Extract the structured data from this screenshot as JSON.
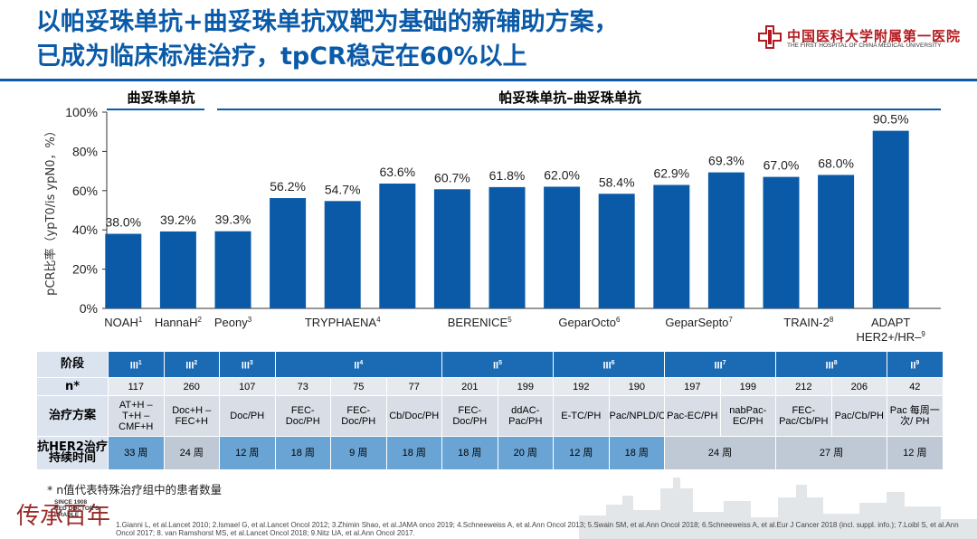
{
  "header": {
    "title_line1": "以帕妥珠单抗+曲妥珠单抗双靶为基础的新辅助方案，",
    "title_line2": "已成为临床标准治疗，tpCR稳定在60%以上",
    "logo_cn": "中国医科大学附属第一医院",
    "logo_en": "THE FIRST HOSPITAL OF CHINA MEDICAL UNIVERSITY"
  },
  "groups": {
    "trastuzumab": "曲妥珠单抗",
    "dual": "帕妥珠单抗–曲妥珠单抗"
  },
  "chart_data": {
    "type": "bar",
    "title": "",
    "ylabel": "pCR比率（ypT0/is ypN0，%）",
    "ylim": [
      0,
      100
    ],
    "yticks": [
      "0%",
      "20%",
      "40%",
      "60%",
      "80%",
      "100%"
    ],
    "values": [
      38.0,
      39.2,
      39.3,
      56.2,
      54.7,
      63.6,
      60.7,
      61.8,
      62.0,
      58.4,
      62.9,
      69.3,
      67.0,
      68.0,
      90.5
    ],
    "labels": [
      "38.0%",
      "39.2%",
      "39.3%",
      "56.2%",
      "54.7%",
      "63.6%",
      "60.7%",
      "61.8%",
      "62.0%",
      "58.4%",
      "62.9%",
      "69.3%",
      "67.0%",
      "68.0%",
      "90.5%"
    ],
    "studies": [
      {
        "name": "NOAH",
        "sup": "1",
        "bars": 1
      },
      {
        "name": "HannaH",
        "sup": "2",
        "bars": 1
      },
      {
        "name": "Peony",
        "sup": "3",
        "bars": 1
      },
      {
        "name": "TRYPHAENA",
        "sup": "4",
        "bars": 3
      },
      {
        "name": "BERENICE",
        "sup": "5",
        "bars": 2
      },
      {
        "name": "GeparOcto",
        "sup": "6",
        "bars": 2
      },
      {
        "name": "GeparSepto",
        "sup": "7",
        "bars": 2
      },
      {
        "name": "TRAIN-2",
        "sup": "8",
        "bars": 2
      },
      {
        "name": "ADAPT",
        "name2": "HER2+/HR–",
        "sup": "9",
        "bars": 1
      }
    ],
    "bar_color": "#0a5aa8"
  },
  "table": {
    "row_headers": [
      "阶段",
      "n*",
      "治疗方案",
      "抗HER2治疗持续时间"
    ],
    "phase": [
      {
        "t": "III",
        "s": "1",
        "span": 1
      },
      {
        "t": "III",
        "s": "2",
        "span": 1
      },
      {
        "t": "III",
        "s": "3",
        "span": 1
      },
      {
        "t": "II",
        "s": "4",
        "span": 3
      },
      {
        "t": "II",
        "s": "5",
        "span": 2
      },
      {
        "t": "III",
        "s": "6",
        "span": 2
      },
      {
        "t": "III",
        "s": "7",
        "span": 2
      },
      {
        "t": "III",
        "s": "8",
        "span": 2
      },
      {
        "t": "II",
        "s": "9",
        "span": 1
      }
    ],
    "n": [
      "117",
      "260",
      "107",
      "73",
      "75",
      "77",
      "201",
      "199",
      "192",
      "190",
      "197",
      "199",
      "212",
      "206",
      "42"
    ],
    "regimen": [
      "AT+H – T+H – CMF+H",
      "Doc+H – FEC+H",
      "Doc/PH",
      "FEC-Doc/PH",
      "FEC-Doc/PH",
      "Cb/Doc/PH",
      "FEC-Doc/PH",
      "ddAC-Pac/PH",
      "E-TC/PH",
      "Pac/NPLD/Cb/PH",
      "Pac-EC/PH",
      "nabPac-EC/PH",
      "FEC-Pac/Cb/PH",
      "Pac/Cb/PH",
      "Pac 每周一次/ PH"
    ],
    "duration": [
      {
        "v": "33 周",
        "span": 1,
        "hl": true
      },
      {
        "v": "24 周",
        "span": 1,
        "hl": false
      },
      {
        "v": "12 周",
        "span": 1,
        "hl": true
      },
      {
        "v": "18 周",
        "span": 1,
        "hl": true
      },
      {
        "v": "9 周",
        "span": 1,
        "hl": true
      },
      {
        "v": "18 周",
        "span": 1,
        "hl": true
      },
      {
        "v": "18 周",
        "span": 1,
        "hl": true
      },
      {
        "v": "20 周",
        "span": 1,
        "hl": true
      },
      {
        "v": "12 周",
        "span": 1,
        "hl": true
      },
      {
        "v": "18 周",
        "span": 1,
        "hl": true
      },
      {
        "v": "24 周",
        "span": 2,
        "hl": false
      },
      {
        "v": "27 周",
        "span": 2,
        "hl": false
      },
      {
        "v": "12 周",
        "span": 1,
        "hl": false
      }
    ]
  },
  "footnote": "* n值代表特殊治疗组中的患者数量",
  "references": "1.Gianni L, et al.Lancet 2010; 2.Ismael G, et al.Lancet Oncol 2012; 3.Zhimin Shao, et al.JAMA onco 2019; 4.Schneeweiss A, et al.Ann Oncol 2013; 5.Swain SM, et al.Ann Oncol 2018; 6.Schneeweiss A, et al.Eur J Cancer 2018 (incl. suppl. info.); 7.Loibl S, et al.Ann Oncol 2017; 8. van Ramshorst MS, et al.Lancet Oncol 2018; 9.Nitz UA, et al.Ann Oncol 2017.",
  "stamp": {
    "cn": "传承百年",
    "since": "SINCE 1908",
    "en1": "RED DOCTOR'S",
    "en2": "CRADLE"
  }
}
